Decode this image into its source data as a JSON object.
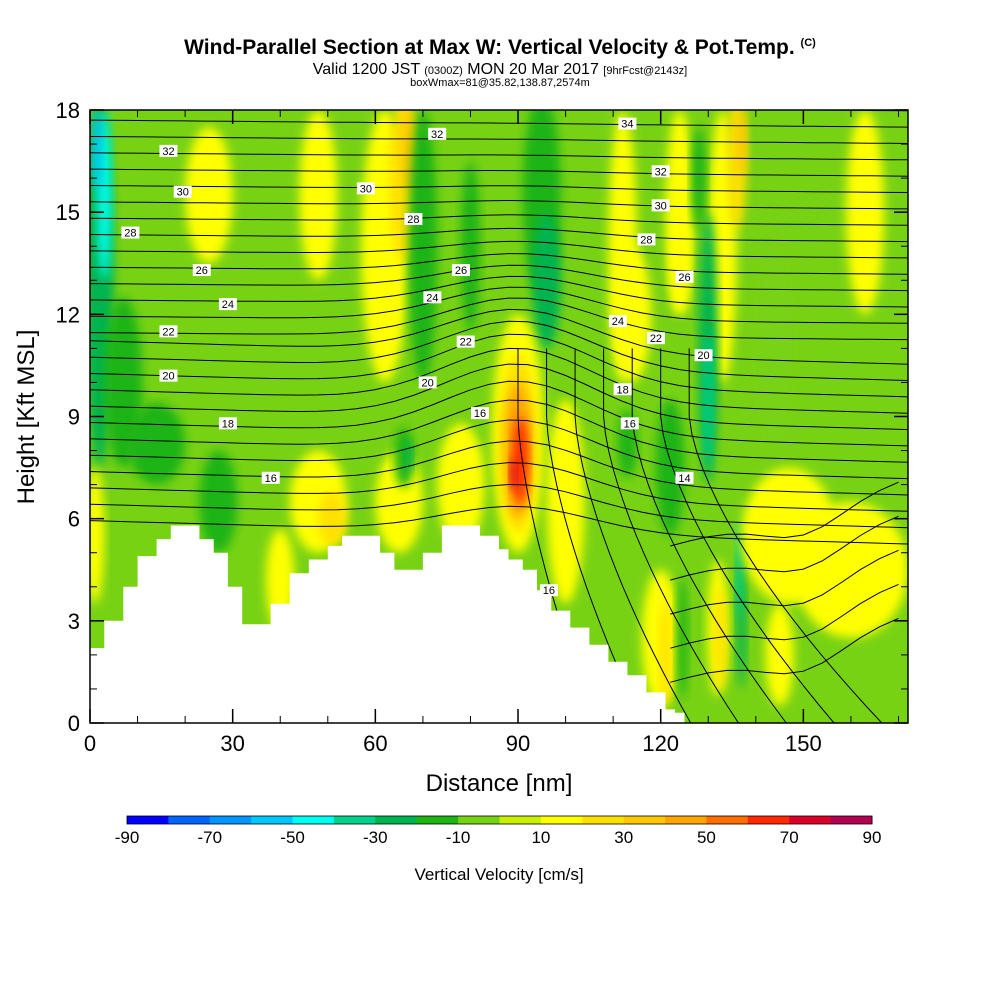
{
  "title": {
    "main": "Wind-Parallel Section at Max W: Vertical Velocity & Pot.Temp.",
    "copyright": "(C)",
    "valid_prefix": "Valid 1200 JST",
    "valid_utc": "(0300Z)",
    "valid_date": "MON 20 Mar 2017",
    "forecast": "[9hrFcst@2143z]",
    "boxw": "boxWmax=81@35.82,138.87,2574m"
  },
  "chart_data": {
    "type": "heatmap",
    "xlabel": "Distance [nm]",
    "ylabel": "Height [Kft MSL]",
    "xlim": [
      0,
      172
    ],
    "ylim": [
      0,
      18
    ],
    "x_ticks": [
      "0",
      "30",
      "60",
      "90",
      "120",
      "150"
    ],
    "y_ticks": [
      "0",
      "3",
      "6",
      "9",
      "12",
      "15",
      "18"
    ],
    "colorbar": {
      "label": "Vertical Velocity [cm/s]",
      "tick_labels": [
        "-90",
        "-70",
        "-50",
        "-30",
        "-10",
        "10",
        "30",
        "50",
        "70",
        "90"
      ],
      "levels": [
        -90,
        -80,
        -70,
        -60,
        -50,
        -40,
        -30,
        -20,
        -10,
        0,
        10,
        20,
        30,
        40,
        50,
        60,
        70,
        80,
        90
      ],
      "colors": [
        "#0000ff",
        "#0064ff",
        "#0096ff",
        "#00c8ff",
        "#00fff0",
        "#00d28c",
        "#00b450",
        "#1eb414",
        "#78d214",
        "#c8f000",
        "#ffff00",
        "#ffe100",
        "#ffc800",
        "#ffa500",
        "#ff6e00",
        "#ff2800",
        "#dc0028",
        "#b40050"
      ]
    },
    "terrain_kft": [
      [
        0,
        2.2
      ],
      [
        3,
        3.0
      ],
      [
        7,
        4.0
      ],
      [
        10,
        4.9
      ],
      [
        14,
        5.4
      ],
      [
        17,
        5.8
      ],
      [
        20,
        5.8
      ],
      [
        23,
        5.4
      ],
      [
        26,
        5.0
      ],
      [
        29,
        4.0
      ],
      [
        32,
        2.9
      ],
      [
        35,
        2.9
      ],
      [
        38,
        3.5
      ],
      [
        42,
        4.4
      ],
      [
        46,
        4.8
      ],
      [
        50,
        5.2
      ],
      [
        53,
        5.5
      ],
      [
        57,
        5.5
      ],
      [
        61,
        5.0
      ],
      [
        64,
        4.5
      ],
      [
        67,
        4.5
      ],
      [
        70,
        5.0
      ],
      [
        74,
        5.8
      ],
      [
        78,
        5.8
      ],
      [
        82,
        5.5
      ],
      [
        86,
        5.1
      ],
      [
        88,
        4.8
      ],
      [
        91,
        4.5
      ],
      [
        94,
        3.9
      ],
      [
        97,
        3.3
      ],
      [
        101,
        2.8
      ],
      [
        105,
        2.3
      ],
      [
        109,
        1.8
      ],
      [
        113,
        1.4
      ],
      [
        117,
        0.9
      ],
      [
        121,
        0.4
      ],
      [
        123,
        0.3
      ],
      [
        125,
        0.3
      ]
    ],
    "theta_contours": [
      {
        "label": "14",
        "x": 125,
        "y": 7.2
      },
      {
        "label": "16",
        "x": 38,
        "y": 7.2
      },
      {
        "label": "16",
        "x": 82,
        "y": 9.1
      },
      {
        "label": "16",
        "x": 113.5,
        "y": 8.8
      },
      {
        "label": "16",
        "x": 96.5,
        "y": 3.9
      },
      {
        "label": "18",
        "x": 29,
        "y": 8.8
      },
      {
        "label": "18",
        "x": 112,
        "y": 9.8
      },
      {
        "label": "20",
        "x": 16.5,
        "y": 10.2
      },
      {
        "label": "20",
        "x": 71,
        "y": 10.0
      },
      {
        "label": "20",
        "x": 129,
        "y": 10.8
      },
      {
        "label": "22",
        "x": 16.5,
        "y": 11.5
      },
      {
        "label": "22",
        "x": 79,
        "y": 11.2
      },
      {
        "label": "22",
        "x": 119,
        "y": 11.3
      },
      {
        "label": "24",
        "x": 29,
        "y": 12.3
      },
      {
        "label": "24",
        "x": 72,
        "y": 12.5
      },
      {
        "label": "24",
        "x": 111,
        "y": 11.8
      },
      {
        "label": "26",
        "x": 23.5,
        "y": 13.3
      },
      {
        "label": "26",
        "x": 78,
        "y": 13.3
      },
      {
        "label": "26",
        "x": 125,
        "y": 13.1
      },
      {
        "label": "28",
        "x": 8.5,
        "y": 14.4
      },
      {
        "label": "28",
        "x": 68,
        "y": 14.8
      },
      {
        "label": "28",
        "x": 117,
        "y": 14.2
      },
      {
        "label": "30",
        "x": 19.5,
        "y": 15.6
      },
      {
        "label": "30",
        "x": 58,
        "y": 15.7
      },
      {
        "label": "30",
        "x": 120,
        "y": 15.2
      },
      {
        "label": "32",
        "x": 16.5,
        "y": 16.8
      },
      {
        "label": "32",
        "x": 73,
        "y": 17.3
      },
      {
        "label": "32",
        "x": 120,
        "y": 16.2
      },
      {
        "label": "34",
        "x": 113,
        "y": 17.6
      }
    ]
  }
}
